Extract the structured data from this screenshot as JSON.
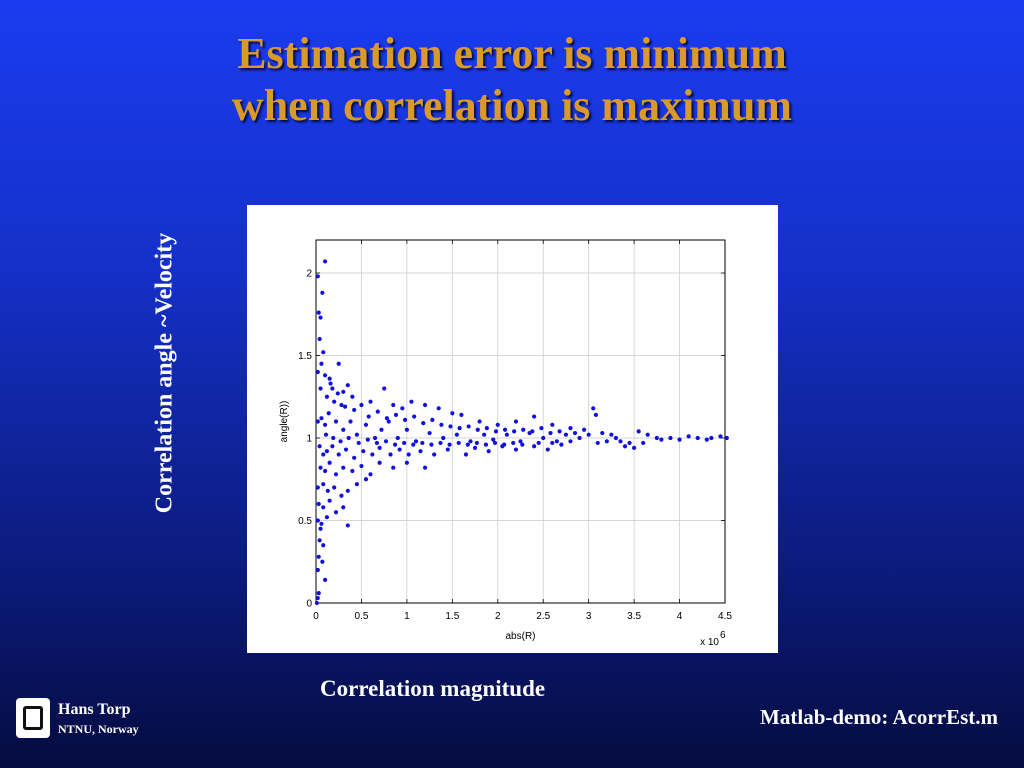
{
  "slide": {
    "title_line1": "Estimation error is minimum",
    "title_line2": "when correlation is maximum",
    "y_caption": "Correlation angle ~Velocity",
    "x_caption": "Correlation magnitude",
    "footer_note": "Matlab-demo: AcorrEst.m",
    "author_name": "Hans Torp",
    "author_affiliation": "NTNU, Norway"
  },
  "colors": {
    "title": "#d99a2b",
    "points": "#1010e0",
    "background_top": "#1a3cf0",
    "background_bottom": "#050c40"
  },
  "chart_data": {
    "type": "scatter",
    "xlabel": "abs(R)",
    "ylabel": "angle(R))",
    "x_multiplier_label": "x 10",
    "x_multiplier_exponent": "6",
    "xlim": [
      0,
      4.5
    ],
    "ylim": [
      0,
      2.2
    ],
    "x_ticks": [
      "0",
      "0.5",
      "1",
      "1.5",
      "2",
      "2.5",
      "3",
      "3.5",
      "4",
      "4.5"
    ],
    "y_ticks": [
      "0",
      "0.5",
      "1",
      "1.5",
      "2"
    ],
    "grid": true,
    "series": [
      {
        "points": [
          [
            0.02,
            1.98
          ],
          [
            0.1,
            2.07
          ],
          [
            0.07,
            1.88
          ],
          [
            0.03,
            1.76
          ],
          [
            0.05,
            1.73
          ],
          [
            0.04,
            1.6
          ],
          [
            0.08,
            1.52
          ],
          [
            0.06,
            1.45
          ],
          [
            0.02,
            1.4
          ],
          [
            0.1,
            1.38
          ],
          [
            0.15,
            1.36
          ],
          [
            0.25,
            1.45
          ],
          [
            0.35,
            1.32
          ],
          [
            0.18,
            1.3
          ],
          [
            0.3,
            1.28
          ],
          [
            0.05,
            1.3
          ],
          [
            0.12,
            1.25
          ],
          [
            0.2,
            1.22
          ],
          [
            0.28,
            1.2
          ],
          [
            0.4,
            1.25
          ],
          [
            0.5,
            1.2
          ],
          [
            0.6,
            1.22
          ],
          [
            0.75,
            1.3
          ],
          [
            0.85,
            1.2
          ],
          [
            0.95,
            1.18
          ],
          [
            1.05,
            1.22
          ],
          [
            1.2,
            1.2
          ],
          [
            1.35,
            1.18
          ],
          [
            1.5,
            1.15
          ],
          [
            1.6,
            1.14
          ],
          [
            1.8,
            1.1
          ],
          [
            2.0,
            1.08
          ],
          [
            2.2,
            1.1
          ],
          [
            2.4,
            1.13
          ],
          [
            2.6,
            1.08
          ],
          [
            2.8,
            1.06
          ],
          [
            3.05,
            1.18
          ],
          [
            3.08,
            1.14
          ],
          [
            0.02,
            1.1
          ],
          [
            0.06,
            1.12
          ],
          [
            0.1,
            1.08
          ],
          [
            0.14,
            1.15
          ],
          [
            0.22,
            1.1
          ],
          [
            0.3,
            1.05
          ],
          [
            0.38,
            1.1
          ],
          [
            0.45,
            1.02
          ],
          [
            0.55,
            1.08
          ],
          [
            0.65,
            1.0
          ],
          [
            0.72,
            1.05
          ],
          [
            0.8,
            1.1
          ],
          [
            0.9,
            1.0
          ],
          [
            1.0,
            1.05
          ],
          [
            1.1,
            0.98
          ],
          [
            1.25,
            1.03
          ],
          [
            1.4,
            1.0
          ],
          [
            1.55,
            1.02
          ],
          [
            1.7,
            0.98
          ],
          [
            1.85,
            1.02
          ],
          [
            1.95,
            0.99
          ],
          [
            2.1,
            1.02
          ],
          [
            2.25,
            0.98
          ],
          [
            2.35,
            1.03
          ],
          [
            2.5,
            1.0
          ],
          [
            2.65,
            0.98
          ],
          [
            2.75,
            1.02
          ],
          [
            2.9,
            1.0
          ],
          [
            3.0,
            1.02
          ],
          [
            3.2,
            0.98
          ],
          [
            3.3,
            1.0
          ],
          [
            3.45,
            0.97
          ],
          [
            3.55,
            1.04
          ],
          [
            3.65,
            1.02
          ],
          [
            3.75,
            1.0
          ],
          [
            3.9,
            1.0
          ],
          [
            4.0,
            0.99
          ],
          [
            4.2,
            1.0
          ],
          [
            4.35,
            1.0
          ],
          [
            4.45,
            1.01
          ],
          [
            4.52,
            1.0
          ],
          [
            0.04,
            0.95
          ],
          [
            0.08,
            0.9
          ],
          [
            0.12,
            0.92
          ],
          [
            0.18,
            0.95
          ],
          [
            0.25,
            0.9
          ],
          [
            0.33,
            0.93
          ],
          [
            0.42,
            0.88
          ],
          [
            0.52,
            0.92
          ],
          [
            0.62,
            0.9
          ],
          [
            0.7,
            0.94
          ],
          [
            0.82,
            0.9
          ],
          [
            0.92,
            0.93
          ],
          [
            1.02,
            0.9
          ],
          [
            1.15,
            0.92
          ],
          [
            1.3,
            0.9
          ],
          [
            1.45,
            0.93
          ],
          [
            1.65,
            0.9
          ],
          [
            1.75,
            0.94
          ],
          [
            1.9,
            0.92
          ],
          [
            2.05,
            0.95
          ],
          [
            2.2,
            0.93
          ],
          [
            2.4,
            0.95
          ],
          [
            2.55,
            0.93
          ],
          [
            2.7,
            0.96
          ],
          [
            3.4,
            0.95
          ],
          [
            3.5,
            0.94
          ],
          [
            0.05,
            0.82
          ],
          [
            0.1,
            0.8
          ],
          [
            0.15,
            0.85
          ],
          [
            0.22,
            0.78
          ],
          [
            0.3,
            0.82
          ],
          [
            0.4,
            0.8
          ],
          [
            0.5,
            0.83
          ],
          [
            0.6,
            0.78
          ],
          [
            0.7,
            0.85
          ],
          [
            0.85,
            0.82
          ],
          [
            1.0,
            0.85
          ],
          [
            1.2,
            0.82
          ],
          [
            0.02,
            0.7
          ],
          [
            0.08,
            0.72
          ],
          [
            0.13,
            0.68
          ],
          [
            0.2,
            0.7
          ],
          [
            0.28,
            0.65
          ],
          [
            0.35,
            0.68
          ],
          [
            0.45,
            0.72
          ],
          [
            0.55,
            0.75
          ],
          [
            0.03,
            0.6
          ],
          [
            0.08,
            0.58
          ],
          [
            0.15,
            0.62
          ],
          [
            0.22,
            0.55
          ],
          [
            0.3,
            0.58
          ],
          [
            0.02,
            0.5
          ],
          [
            0.06,
            0.48
          ],
          [
            0.12,
            0.52
          ],
          [
            0.35,
            0.47
          ],
          [
            0.04,
            0.38
          ],
          [
            0.08,
            0.35
          ],
          [
            0.03,
            0.28
          ],
          [
            0.07,
            0.25
          ],
          [
            0.02,
            0.2
          ],
          [
            0.1,
            0.14
          ],
          [
            0.03,
            0.06
          ],
          [
            0.01,
            0.0
          ],
          [
            0.02,
            0.03
          ],
          [
            0.05,
            0.45
          ],
          [
            0.16,
            1.33
          ],
          [
            0.24,
            1.27
          ],
          [
            0.32,
            1.19
          ],
          [
            0.42,
            1.17
          ],
          [
            0.58,
            1.13
          ],
          [
            0.68,
            1.16
          ],
          [
            0.78,
            1.12
          ],
          [
            0.88,
            1.14
          ],
          [
            0.98,
            1.11
          ],
          [
            1.08,
            1.13
          ],
          [
            1.18,
            1.09
          ],
          [
            1.28,
            1.11
          ],
          [
            1.38,
            1.08
          ],
          [
            1.48,
            1.07
          ],
          [
            1.58,
            1.06
          ],
          [
            1.68,
            1.07
          ],
          [
            1.78,
            1.05
          ],
          [
            1.88,
            1.06
          ],
          [
            1.98,
            1.04
          ],
          [
            2.08,
            1.05
          ],
          [
            2.18,
            1.04
          ],
          [
            2.28,
            1.05
          ],
          [
            2.38,
            1.04
          ],
          [
            2.48,
            1.06
          ],
          [
            2.58,
            1.03
          ],
          [
            2.68,
            1.04
          ],
          [
            2.85,
            1.03
          ],
          [
            2.95,
            1.05
          ],
          [
            3.15,
            1.03
          ],
          [
            3.25,
            1.02
          ],
          [
            0.11,
            1.02
          ],
          [
            0.19,
            1.0
          ],
          [
            0.27,
            0.98
          ],
          [
            0.36,
            1.0
          ],
          [
            0.47,
            0.97
          ],
          [
            0.57,
            0.99
          ],
          [
            0.67,
            0.97
          ],
          [
            0.77,
            0.98
          ],
          [
            0.87,
            0.96
          ],
          [
            0.97,
            0.97
          ],
          [
            1.07,
            0.96
          ],
          [
            1.17,
            0.97
          ],
          [
            1.27,
            0.96
          ],
          [
            1.37,
            0.97
          ],
          [
            1.47,
            0.96
          ],
          [
            1.57,
            0.97
          ],
          [
            1.67,
            0.96
          ],
          [
            1.77,
            0.97
          ],
          [
            1.87,
            0.96
          ],
          [
            1.97,
            0.97
          ],
          [
            2.07,
            0.96
          ],
          [
            2.17,
            0.97
          ],
          [
            2.27,
            0.96
          ],
          [
            2.45,
            0.97
          ],
          [
            2.6,
            0.97
          ],
          [
            2.8,
            0.98
          ],
          [
            3.1,
            0.97
          ],
          [
            3.35,
            0.98
          ],
          [
            3.6,
            0.97
          ],
          [
            3.8,
            0.99
          ],
          [
            4.1,
            1.01
          ],
          [
            4.3,
            0.99
          ]
        ]
      }
    ]
  }
}
